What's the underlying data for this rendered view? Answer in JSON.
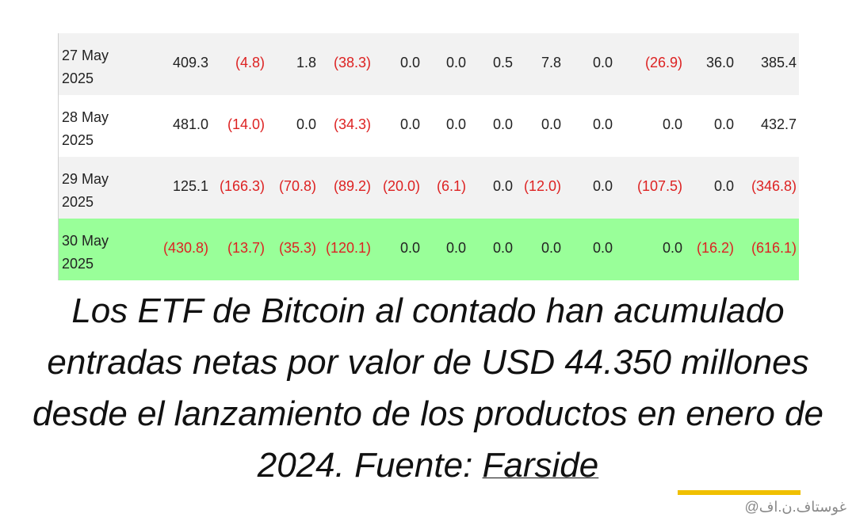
{
  "table": {
    "rows": [
      {
        "date": "27 May 2025",
        "values": [
          "409.3",
          "(4.8)",
          "1.8",
          "(38.3)",
          "0.0",
          "0.0",
          "0.5",
          "7.8",
          "0.0",
          "(26.9)",
          "36.0",
          "385.4"
        ]
      },
      {
        "date": "28 May 2025",
        "values": [
          "481.0",
          "(14.0)",
          "0.0",
          "(34.3)",
          "0.0",
          "0.0",
          "0.0",
          "0.0",
          "0.0",
          "0.0",
          "0.0",
          "432.7"
        ]
      },
      {
        "date": "29 May 2025",
        "values": [
          "125.1",
          "(166.3)",
          "(70.8)",
          "(89.2)",
          "(20.0)",
          "(6.1)",
          "0.0",
          "(12.0)",
          "0.0",
          "(107.5)",
          "0.0",
          "(346.8)"
        ]
      },
      {
        "date": "30 May 2025",
        "values": [
          "(430.8)",
          "(13.7)",
          "(35.3)",
          "(120.1)",
          "0.0",
          "0.0",
          "0.0",
          "0.0",
          "0.0",
          "0.0",
          "(16.2)",
          "(616.1)"
        ]
      }
    ]
  },
  "caption": {
    "text": "Los ETF de Bitcoin al contado han acumulado entradas netas por valor de USD 44.350 millones desde el lanzamiento de los productos en enero de 2024. Fuente:",
    "link": "Farside"
  },
  "watermark": "@غوستاف.ن.اف"
}
